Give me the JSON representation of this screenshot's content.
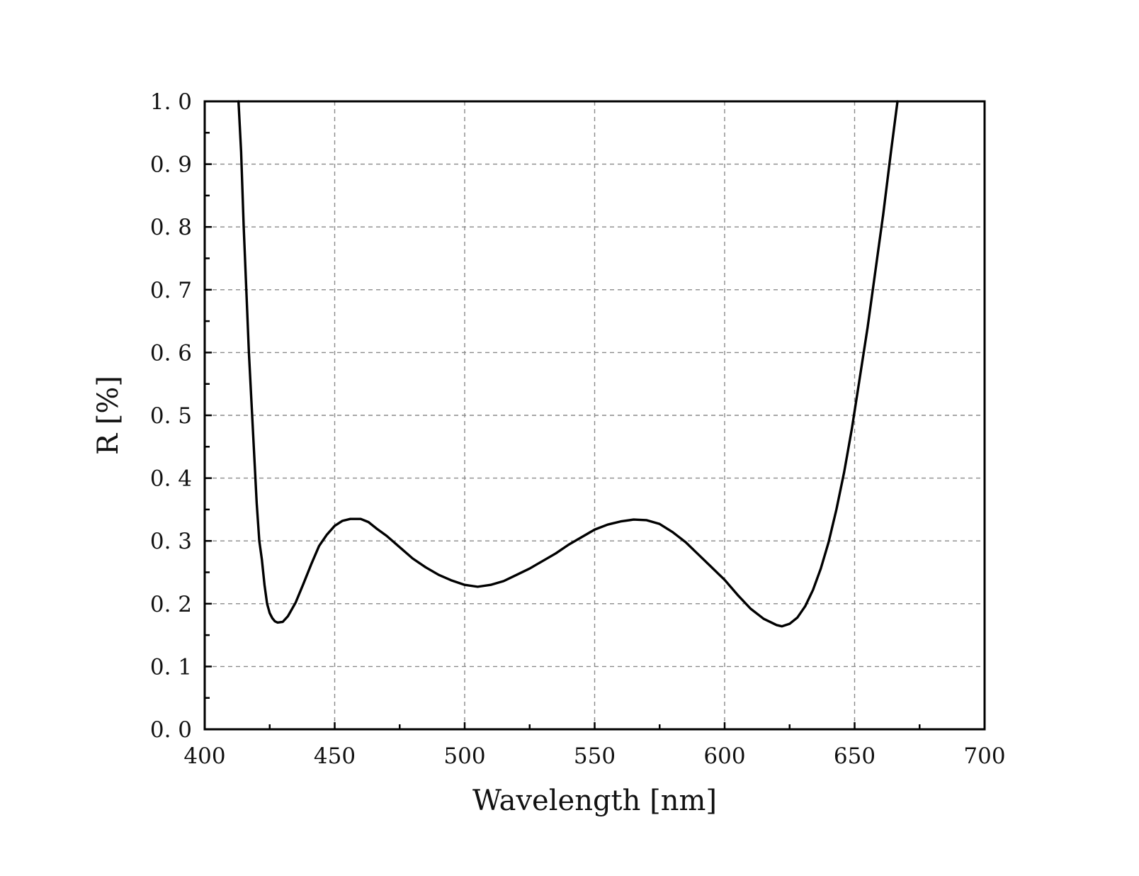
{
  "chart_data": {
    "type": "line",
    "title": "",
    "xlabel": "Wavelength [nm]",
    "ylabel": "R [%]",
    "xlim": [
      400,
      700
    ],
    "ylim": [
      0.0,
      1.0
    ],
    "x_ticks": [
      400,
      450,
      500,
      550,
      600,
      650,
      700
    ],
    "x_tick_labels": [
      "400",
      "450",
      "500",
      "550",
      "600",
      "650",
      "700"
    ],
    "y_ticks": [
      0.0,
      0.1,
      0.2,
      0.3,
      0.4,
      0.5,
      0.6,
      0.7,
      0.8,
      0.9,
      1.0
    ],
    "y_tick_labels": [
      "0. 0",
      "0. 1",
      "0. 2",
      "0. 3",
      "0. 4",
      "0. 5",
      "0. 6",
      "0. 7",
      "0. 8",
      "0. 9",
      "1. 0"
    ],
    "grid": true,
    "grid_style": "dashed",
    "line_color": "#000000",
    "series": [
      {
        "x": [
          413,
          414,
          415,
          416,
          417,
          418,
          419,
          420,
          421,
          422,
          423,
          424,
          425,
          426,
          427,
          428,
          430,
          432,
          435,
          438,
          441,
          444,
          447,
          450,
          453,
          456,
          460,
          463,
          466,
          470,
          475,
          480,
          485,
          490,
          495,
          500,
          505,
          510,
          515,
          520,
          525,
          530,
          535,
          540,
          545,
          550,
          555,
          560,
          565,
          570,
          575,
          580,
          585,
          590,
          595,
          600,
          605,
          610,
          615,
          620,
          622,
          625,
          628,
          631,
          634,
          637,
          640,
          643,
          646,
          649,
          652,
          655,
          658,
          661,
          664,
          666.5
        ],
        "y": [
          1.0,
          0.92,
          0.8,
          0.7,
          0.6,
          0.52,
          0.44,
          0.36,
          0.3,
          0.27,
          0.23,
          0.2,
          0.185,
          0.177,
          0.172,
          0.17,
          0.171,
          0.18,
          0.202,
          0.232,
          0.263,
          0.292,
          0.31,
          0.324,
          0.332,
          0.335,
          0.335,
          0.33,
          0.32,
          0.308,
          0.29,
          0.272,
          0.258,
          0.246,
          0.237,
          0.23,
          0.227,
          0.23,
          0.236,
          0.246,
          0.256,
          0.268,
          0.28,
          0.294,
          0.306,
          0.318,
          0.326,
          0.331,
          0.334,
          0.333,
          0.327,
          0.314,
          0.298,
          0.278,
          0.258,
          0.238,
          0.214,
          0.192,
          0.176,
          0.166,
          0.164,
          0.168,
          0.178,
          0.196,
          0.222,
          0.256,
          0.298,
          0.35,
          0.41,
          0.48,
          0.56,
          0.64,
          0.73,
          0.82,
          0.92,
          1.0
        ]
      }
    ]
  }
}
